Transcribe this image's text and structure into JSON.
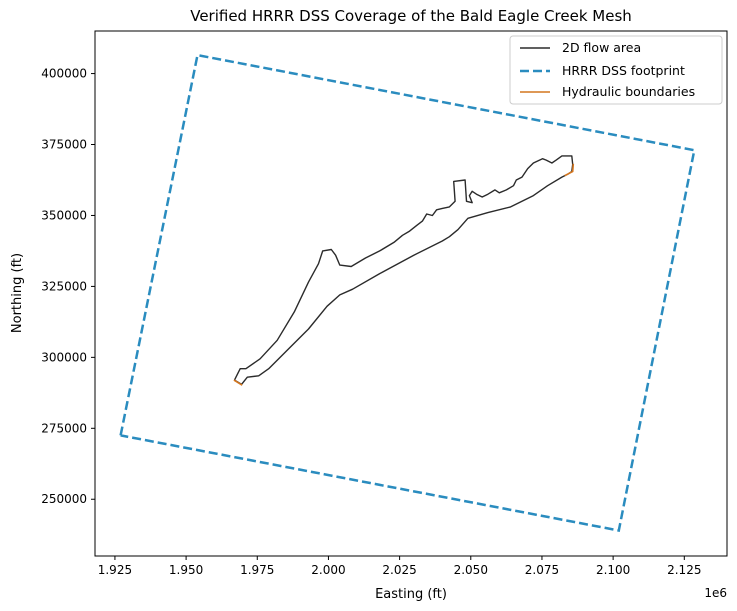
{
  "chart_data": {
    "type": "line",
    "title": "Verified HRRR DSS Coverage of the Bald Eagle Creek Mesh",
    "xlabel": "Easting (ft)",
    "ylabel": "Northing (ft)",
    "x_offset_label": "1e6",
    "xlim": [
      1.918,
      2.14
    ],
    "ylim": [
      230000,
      415000
    ],
    "x_ticks": [
      1.925,
      1.95,
      1.975,
      2.0,
      2.025,
      2.05,
      2.075,
      2.1,
      2.125
    ],
    "x_tick_labels": [
      "1.925",
      "1.950",
      "1.975",
      "2.000",
      "2.025",
      "2.050",
      "2.075",
      "2.100",
      "2.125"
    ],
    "y_ticks": [
      250000,
      275000,
      300000,
      325000,
      350000,
      375000,
      400000
    ],
    "y_tick_labels": [
      "250000",
      "275000",
      "300000",
      "325000",
      "350000",
      "375000",
      "400000"
    ],
    "grid": false,
    "legend_position": "top-right",
    "series": [
      {
        "name": "2D flow area",
        "color": "#2b2b2b",
        "style": "solid",
        "points": [
          [
            1.967,
            292000
          ],
          [
            1.9695,
            290500
          ],
          [
            1.9715,
            293000
          ],
          [
            1.9755,
            293500
          ],
          [
            1.979,
            296000
          ],
          [
            1.985,
            302000
          ],
          [
            1.993,
            310000
          ],
          [
            1.9995,
            318000
          ],
          [
            2.004,
            322000
          ],
          [
            2.0085,
            324000
          ],
          [
            2.018,
            329500
          ],
          [
            2.03,
            336000
          ],
          [
            2.04,
            341000
          ],
          [
            2.0425,
            342500
          ],
          [
            2.0455,
            345000
          ],
          [
            2.049,
            349000
          ],
          [
            2.056,
            351000
          ],
          [
            2.064,
            353000
          ],
          [
            2.072,
            357000
          ],
          [
            2.077,
            360500
          ],
          [
            2.082,
            363500
          ],
          [
            2.084,
            364500
          ],
          [
            2.0855,
            365500
          ],
          [
            2.0858,
            368000
          ],
          [
            2.0855,
            371000
          ],
          [
            2.082,
            371000
          ],
          [
            2.08,
            369500
          ],
          [
            2.0785,
            368500
          ],
          [
            2.0765,
            369500
          ],
          [
            2.0752,
            370000
          ],
          [
            2.072,
            368500
          ],
          [
            2.07,
            366500
          ],
          [
            2.068,
            363500
          ],
          [
            2.066,
            362500
          ],
          [
            2.065,
            360500
          ],
          [
            2.0625,
            359000
          ],
          [
            2.06,
            358000
          ],
          [
            2.0585,
            359000
          ],
          [
            2.056,
            357500
          ],
          [
            2.054,
            356500
          ],
          [
            2.052,
            357500
          ],
          [
            2.0505,
            358500
          ],
          [
            2.0495,
            357000
          ],
          [
            2.0505,
            354500
          ],
          [
            2.0485,
            355000
          ],
          [
            2.048,
            362500
          ],
          [
            2.044,
            362000
          ],
          [
            2.0445,
            355000
          ],
          [
            2.0425,
            353000
          ],
          [
            2.04,
            352500
          ],
          [
            2.038,
            352000
          ],
          [
            2.0365,
            350000
          ],
          [
            2.0345,
            350500
          ],
          [
            2.033,
            348000
          ],
          [
            2.031,
            346500
          ],
          [
            2.0285,
            344500
          ],
          [
            2.026,
            343000
          ],
          [
            2.023,
            340500
          ],
          [
            2.018,
            337500
          ],
          [
            2.013,
            335000
          ],
          [
            2.008,
            332000
          ],
          [
            2.004,
            332500
          ],
          [
            2.0025,
            336000
          ],
          [
            2.001,
            338000
          ],
          [
            1.998,
            337500
          ],
          [
            1.9965,
            333000
          ],
          [
            1.993,
            326500
          ],
          [
            1.988,
            316000
          ],
          [
            1.982,
            306000
          ],
          [
            1.976,
            299500
          ],
          [
            1.971,
            296000
          ],
          [
            1.969,
            296000
          ],
          [
            1.968,
            294000
          ],
          [
            1.967,
            292000
          ]
        ]
      },
      {
        "name": "HRRR DSS footprint",
        "color": "#2a8cbf",
        "style": "dashed",
        "points": [
          [
            1.927,
            272500
          ],
          [
            1.954,
            406500
          ],
          [
            2.1285,
            373000
          ],
          [
            2.102,
            239000
          ],
          [
            1.927,
            272500
          ]
        ]
      },
      {
        "name": "Hydraulic boundaries",
        "color": "#d4761f",
        "style": "solid",
        "segments": [
          [
            [
              1.9668,
              292000
            ],
            [
              1.9697,
              290200
            ]
          ],
          [
            [
              2.083,
              364000
            ],
            [
              2.0858,
              365500
            ],
            [
              2.086,
              368200
            ]
          ]
        ]
      }
    ]
  }
}
